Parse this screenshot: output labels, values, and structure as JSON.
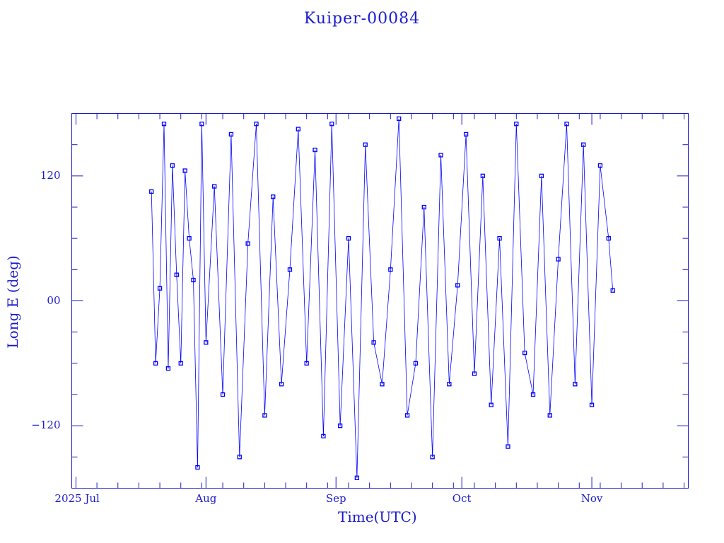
{
  "chart_data": {
    "type": "line",
    "title": "Kuiper-00084",
    "xlabel": "Time(UTC)",
    "ylabel": "Long E (deg)",
    "ylim": [
      -180,
      180
    ],
    "x_ticks": [
      {
        "date": "2025-07-01",
        "label": "2025 Jul"
      },
      {
        "date": "2025-08-01",
        "label": "Aug"
      },
      {
        "date": "2025-09-01",
        "label": "Sep"
      },
      {
        "date": "2025-10-01",
        "label": "Oct"
      },
      {
        "date": "2025-11-01",
        "label": "Nov"
      }
    ],
    "xlim": [
      "2025-06-30",
      "2025-11-24"
    ],
    "y_ticks": [
      {
        "value": 120,
        "label": "120"
      },
      {
        "value": 0,
        "label": "00"
      },
      {
        "value": -120,
        "label": "−120"
      }
    ],
    "grid": false,
    "series": [
      {
        "marker": "square",
        "color": "#0000ff",
        "x": [
          "2025-07-19",
          "2025-07-20",
          "2025-07-21",
          "2025-07-22",
          "2025-07-23",
          "2025-07-24",
          "2025-07-25",
          "2025-07-26",
          "2025-07-27",
          "2025-07-28",
          "2025-07-29",
          "2025-07-30",
          "2025-07-31",
          "2025-08-01",
          "2025-08-03",
          "2025-08-05",
          "2025-08-07",
          "2025-08-09",
          "2025-08-11",
          "2025-08-13",
          "2025-08-15",
          "2025-08-17",
          "2025-08-19",
          "2025-08-21",
          "2025-08-23",
          "2025-08-25",
          "2025-08-27",
          "2025-08-29",
          "2025-08-31",
          "2025-09-02",
          "2025-09-04",
          "2025-09-06",
          "2025-09-08",
          "2025-09-10",
          "2025-09-12",
          "2025-09-14",
          "2025-09-16",
          "2025-09-18",
          "2025-09-20",
          "2025-09-22",
          "2025-09-24",
          "2025-09-26",
          "2025-09-28",
          "2025-09-30",
          "2025-10-02",
          "2025-10-04",
          "2025-10-06",
          "2025-10-08",
          "2025-10-10",
          "2025-10-12",
          "2025-10-14",
          "2025-10-16",
          "2025-10-18",
          "2025-10-20",
          "2025-10-22",
          "2025-10-24",
          "2025-10-26",
          "2025-10-28",
          "2025-10-30",
          "2025-11-01",
          "2025-11-03",
          "2025-11-05",
          "2025-11-06"
        ],
        "y": [
          105,
          -60,
          12,
          170,
          -65,
          130,
          25,
          -60,
          125,
          60,
          20,
          -160,
          170,
          -40,
          110,
          -90,
          160,
          -150,
          55,
          170,
          -110,
          100,
          -80,
          30,
          165,
          -60,
          145,
          -130,
          170,
          -120,
          60,
          -170,
          150,
          -40,
          -80,
          30,
          175,
          -110,
          -60,
          90,
          -150,
          140,
          -80,
          15,
          160,
          -70,
          120,
          -100,
          60,
          -140,
          170,
          -50,
          -90,
          120,
          -110,
          40,
          170,
          -80,
          150,
          -100,
          130,
          60,
          10
        ]
      }
    ]
  }
}
